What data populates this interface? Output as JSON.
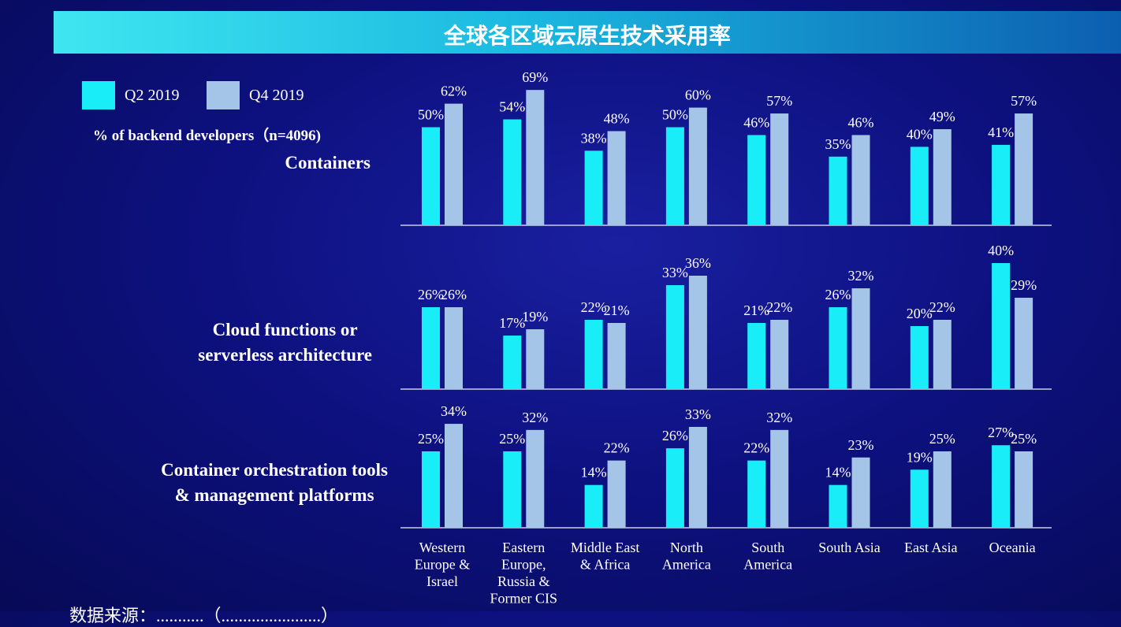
{
  "title": "全球各区域云原生技术采用率",
  "legend": [
    {
      "label": "Q2 2019",
      "color": "#19eef8"
    },
    {
      "label": "Q4 2019",
      "color": "#a4c4e8"
    }
  ],
  "subtitle": "% of backend developers（n=4096)",
  "source_text": "数据来源：...........（.......................）",
  "chart_data": {
    "type": "bar",
    "categories": [
      [
        "Western",
        "Europe &",
        "Israel"
      ],
      [
        "Eastern",
        "Europe,",
        "Russia &",
        "Former CIS"
      ],
      [
        "Middle East",
        "& Africa"
      ],
      [
        "North",
        "America"
      ],
      [
        "South",
        "America"
      ],
      [
        "South Asia"
      ],
      [
        "East Asia"
      ],
      [
        "Oceania"
      ]
    ],
    "series_names": [
      "Q2 2019",
      "Q4 2019"
    ],
    "panels": [
      {
        "title_lines": [
          "Containers"
        ],
        "series": [
          {
            "name": "Q2 2019",
            "values": [
              50,
              54,
              38,
              50,
              46,
              35,
              40,
              41
            ]
          },
          {
            "name": "Q4 2019",
            "values": [
              62,
              69,
              48,
              60,
              57,
              46,
              49,
              57
            ]
          }
        ]
      },
      {
        "title_lines": [
          "Cloud functions or",
          "serverless architecture"
        ],
        "series": [
          {
            "name": "Q2 2019",
            "values": [
              26,
              17,
              22,
              33,
              21,
              26,
              20,
              40
            ]
          },
          {
            "name": "Q4 2019",
            "values": [
              26,
              19,
              21,
              36,
              22,
              32,
              22,
              29
            ]
          }
        ]
      },
      {
        "title_lines": [
          "Container orchestration tools",
          "& management platforms"
        ],
        "series": [
          {
            "name": "Q2 2019",
            "values": [
              25,
              25,
              14,
              26,
              22,
              14,
              19,
              27
            ]
          },
          {
            "name": "Q4 2019",
            "values": [
              34,
              32,
              22,
              33,
              32,
              23,
              25,
              25
            ]
          }
        ]
      }
    ],
    "value_suffix": "%",
    "grid": false,
    "legend_position": "top-left"
  }
}
